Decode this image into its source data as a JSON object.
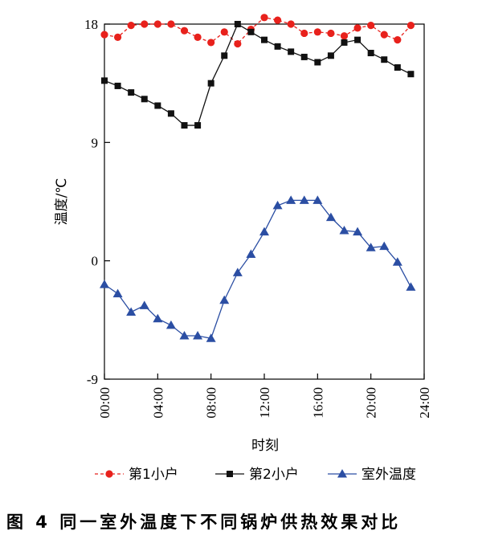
{
  "caption": "图 4   同一室外温度下不同锅炉供热效果对比",
  "chart_data": {
    "type": "line",
    "xlabel": "时刻",
    "ylabel": "温度/℃",
    "x_ticks": [
      "00:00",
      "04:00",
      "08:00",
      "12:00",
      "16:00",
      "20:00",
      "24:00"
    ],
    "y_ticks": [
      "-9",
      "0",
      "9",
      "18"
    ],
    "xlim": [
      0,
      24
    ],
    "ylim": [
      -9,
      18
    ],
    "grid": false,
    "legend_position": "bottom",
    "x": [
      0,
      1,
      2,
      3,
      4,
      5,
      6,
      7,
      8,
      9,
      10,
      11,
      12,
      13,
      14,
      15,
      16,
      17,
      18,
      19,
      20,
      21,
      22,
      23
    ],
    "series": [
      {
        "name": "第1小户",
        "color": "#e8211c",
        "marker": "circle",
        "line_style": "dashed",
        "values": [
          17.2,
          17.0,
          17.9,
          18.0,
          18.0,
          18.0,
          17.5,
          17.0,
          16.6,
          17.4,
          16.5,
          17.6,
          18.5,
          18.3,
          18.0,
          17.3,
          17.4,
          17.3,
          17.1,
          17.7,
          17.9,
          17.2,
          16.8,
          17.9
        ]
      },
      {
        "name": "第2小户",
        "color": "#111111",
        "marker": "square",
        "line_style": "solid",
        "values": [
          13.7,
          13.3,
          12.8,
          12.3,
          11.8,
          11.2,
          10.3,
          10.3,
          13.5,
          15.6,
          18.0,
          17.4,
          16.8,
          16.3,
          15.9,
          15.5,
          15.1,
          15.6,
          16.6,
          16.8,
          15.8,
          15.3,
          14.7,
          14.2
        ]
      },
      {
        "name": "室外温度",
        "color": "#2b4ea3",
        "marker": "triangle",
        "line_style": "solid",
        "values": [
          -1.8,
          -2.5,
          -3.9,
          -3.4,
          -4.4,
          -4.9,
          -5.7,
          -5.7,
          -5.9,
          -3.0,
          -0.9,
          0.5,
          2.2,
          4.2,
          4.6,
          4.6,
          4.6,
          3.3,
          2.3,
          2.2,
          1.0,
          1.1,
          -0.1,
          -2.0
        ]
      }
    ]
  }
}
